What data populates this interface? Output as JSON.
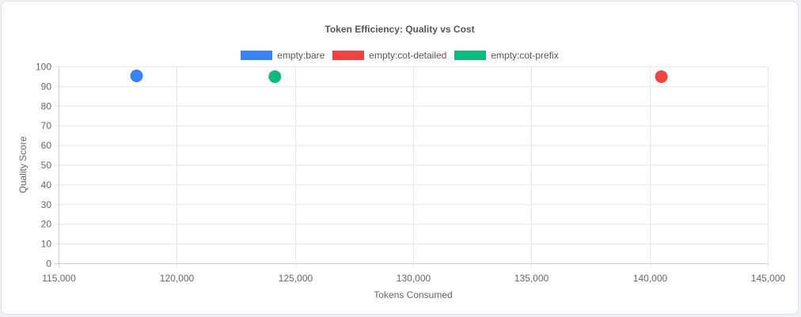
{
  "chart_data": {
    "type": "scatter",
    "title": "Token Efficiency: Quality vs Cost",
    "xlabel": "Tokens Consumed",
    "ylabel": "Quality Score",
    "xlim": [
      115000,
      145000
    ],
    "ylim": [
      0,
      100
    ],
    "x_ticks": [
      115000,
      120000,
      125000,
      130000,
      135000,
      140000,
      145000
    ],
    "x_tick_labels": [
      "115,000",
      "120,000",
      "125,000",
      "130,000",
      "135,000",
      "140,000",
      "145,000"
    ],
    "y_ticks": [
      0,
      10,
      20,
      30,
      40,
      50,
      60,
      70,
      80,
      90,
      100
    ],
    "grid": true,
    "legend_position": "top",
    "series": [
      {
        "name": "empty:bare",
        "color": "#3b82f6",
        "points": [
          {
            "x": 118300,
            "y": 95.2
          }
        ]
      },
      {
        "name": "empty:cot-detailed",
        "color": "#ef4444",
        "points": [
          {
            "x": 140500,
            "y": 94.8
          }
        ]
      },
      {
        "name": "empty:cot-prefix",
        "color": "#10b981",
        "points": [
          {
            "x": 124150,
            "y": 94.8
          }
        ]
      }
    ]
  }
}
